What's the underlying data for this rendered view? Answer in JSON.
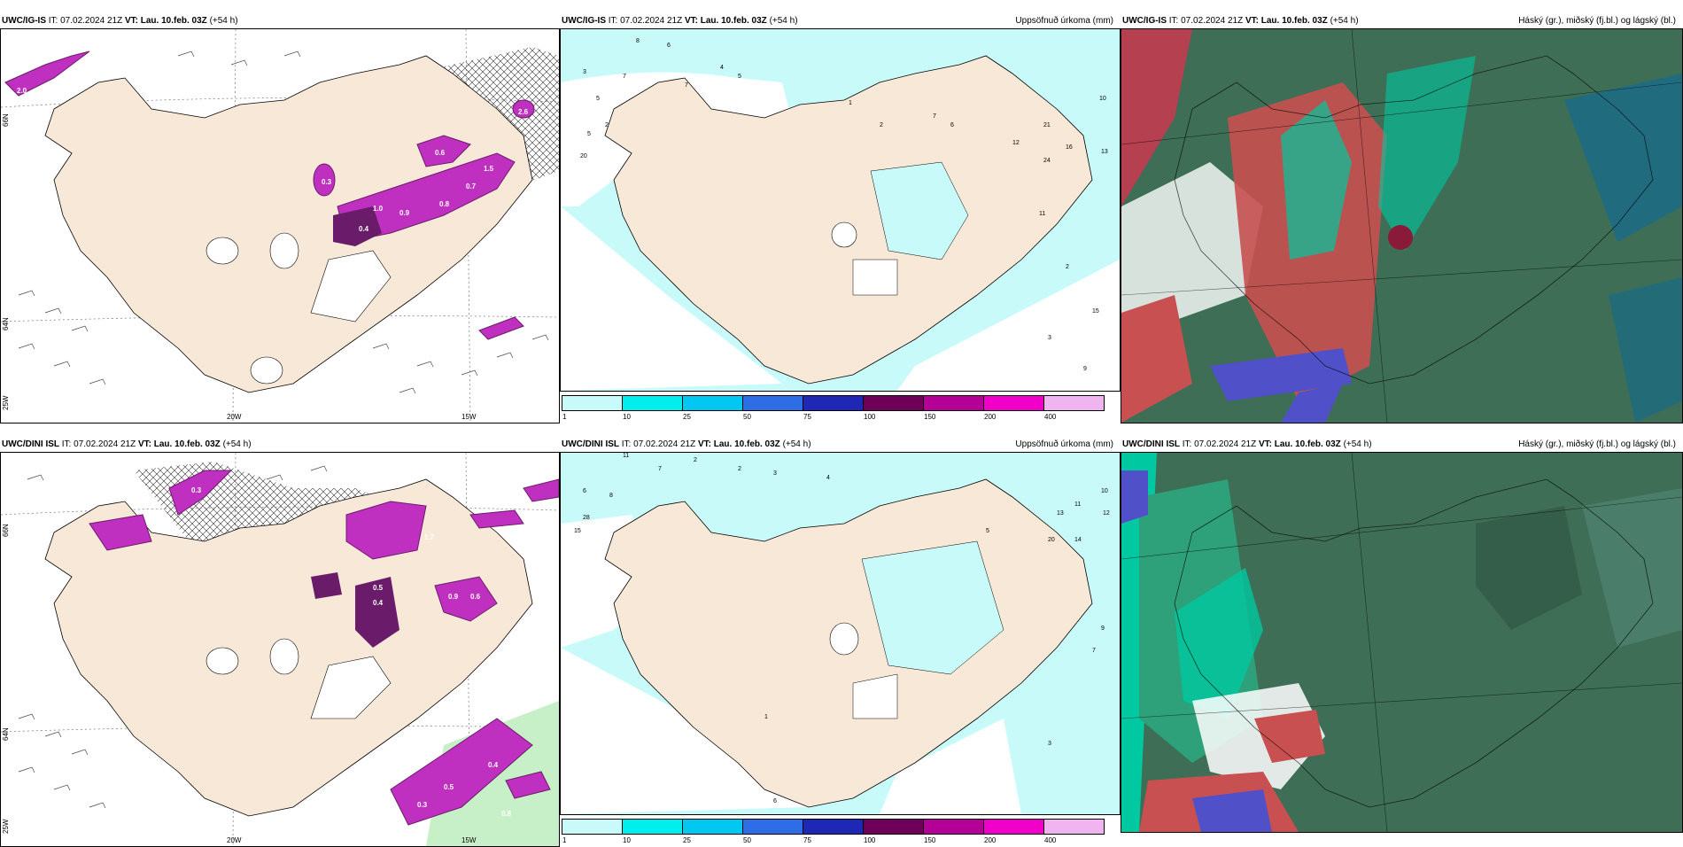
{
  "panels": {
    "p1": {
      "model": "UWC/IG-IS",
      "it_label": "IT:",
      "it": "07.02.2024 21Z",
      "vt_label": "VT:",
      "vt": "Lau. 10.feb. 03Z",
      "lead": "(+54 h)",
      "right": ""
    },
    "p2": {
      "model": "UWC/IG-IS",
      "it_label": "IT:",
      "it": "07.02.2024 21Z",
      "vt_label": "VT:",
      "vt": "Lau. 10.feb. 03Z",
      "lead": "(+54 h)",
      "right": "Uppsöfnuð úrkoma (mm)"
    },
    "p3": {
      "model": "UWC/IG-IS",
      "it_label": "IT:",
      "it": "07.02.2024 21Z",
      "vt_label": "VT:",
      "vt": "Lau. 10.feb. 03Z",
      "lead": "(+54 h)",
      "right": "Háský (gr.), miðský (fj.bl.) og lágský (bl.)"
    },
    "p4": {
      "model": "UWC/DINI ISL",
      "it_label": "IT:",
      "it": "07.02.2024 21Z",
      "vt_label": "VT:",
      "vt": "Lau. 10.feb. 03Z",
      "lead": "(+54 h)",
      "right": ""
    },
    "p5": {
      "model": "UWC/DINI ISL",
      "it_label": "IT:",
      "it": "07.02.2024 21Z",
      "vt_label": "VT:",
      "vt": "Lau. 10.feb. 03Z",
      "lead": "(+54 h)",
      "right": "Uppsöfnuð úrkoma (mm)"
    },
    "p6": {
      "model": "UWC/DINI ISL",
      "it_label": "IT:",
      "it": "07.02.2024 21Z",
      "vt_label": "VT:",
      "vt": "Lau. 10.feb. 03Z",
      "lead": "(+54 h)",
      "right": "Háský (gr.), miðský (fj.bl.) og lágský (bl.)"
    }
  },
  "axes": {
    "p1": {
      "lat1": "66N",
      "lat2": "64N",
      "lat3": "25W",
      "lon1": "20W",
      "lon2": "15W"
    },
    "p4": {
      "lat1": "66N",
      "lat2": "64N",
      "lat3": "25W",
      "lon1": "20W",
      "lon2": "15W"
    }
  },
  "colorbar": {
    "colors": [
      "#c8fafa",
      "#00eeee",
      "#00c8f0",
      "#2d6ee6",
      "#1e28b4",
      "#6e005a",
      "#b40096",
      "#f000c8",
      "#f0b4f0"
    ],
    "labels": [
      "1",
      "10",
      "25",
      "50",
      "75",
      "100",
      "150",
      "200",
      "400"
    ]
  },
  "wind_values_p1": [
    "2.0",
    "2.6",
    "0.6",
    "0.3",
    "1.0",
    "0.4",
    "0.9",
    "0.8",
    "0.7",
    "1.5"
  ],
  "wind_values_p4": [
    "0.3",
    "1.7",
    "0.5",
    "0.4",
    "0.9",
    "0.6",
    "0.8",
    "0.4",
    "0.3",
    "0.5"
  ],
  "precip_points_p2": [
    "3",
    "5",
    "7",
    "5",
    "2",
    "20",
    "8",
    "6",
    "4",
    "5",
    "1",
    "2",
    "7",
    "6",
    "21",
    "24",
    "16",
    "13",
    "10",
    "12",
    "11",
    "9",
    "15",
    "3",
    "2",
    "7"
  ],
  "precip_points_p5": [
    "11",
    "7",
    "2",
    "6",
    "8",
    "28",
    "15",
    "2",
    "3",
    "4",
    "13",
    "11",
    "10",
    "14",
    "20",
    "5",
    "9",
    "12",
    "7",
    "3",
    "1",
    "6"
  ],
  "colors": {
    "land": "#f8e8d8",
    "sea_white": "#ffffff",
    "precip_light": "#c8fafa",
    "wind_purple": "#c030c0",
    "wind_dark": "#6a1c6a",
    "cloud_dark": "#3e6e56",
    "cloud_teal": "#00c8a0",
    "cloud_red": "#c85050",
    "cloud_blue": "#5050c8"
  }
}
